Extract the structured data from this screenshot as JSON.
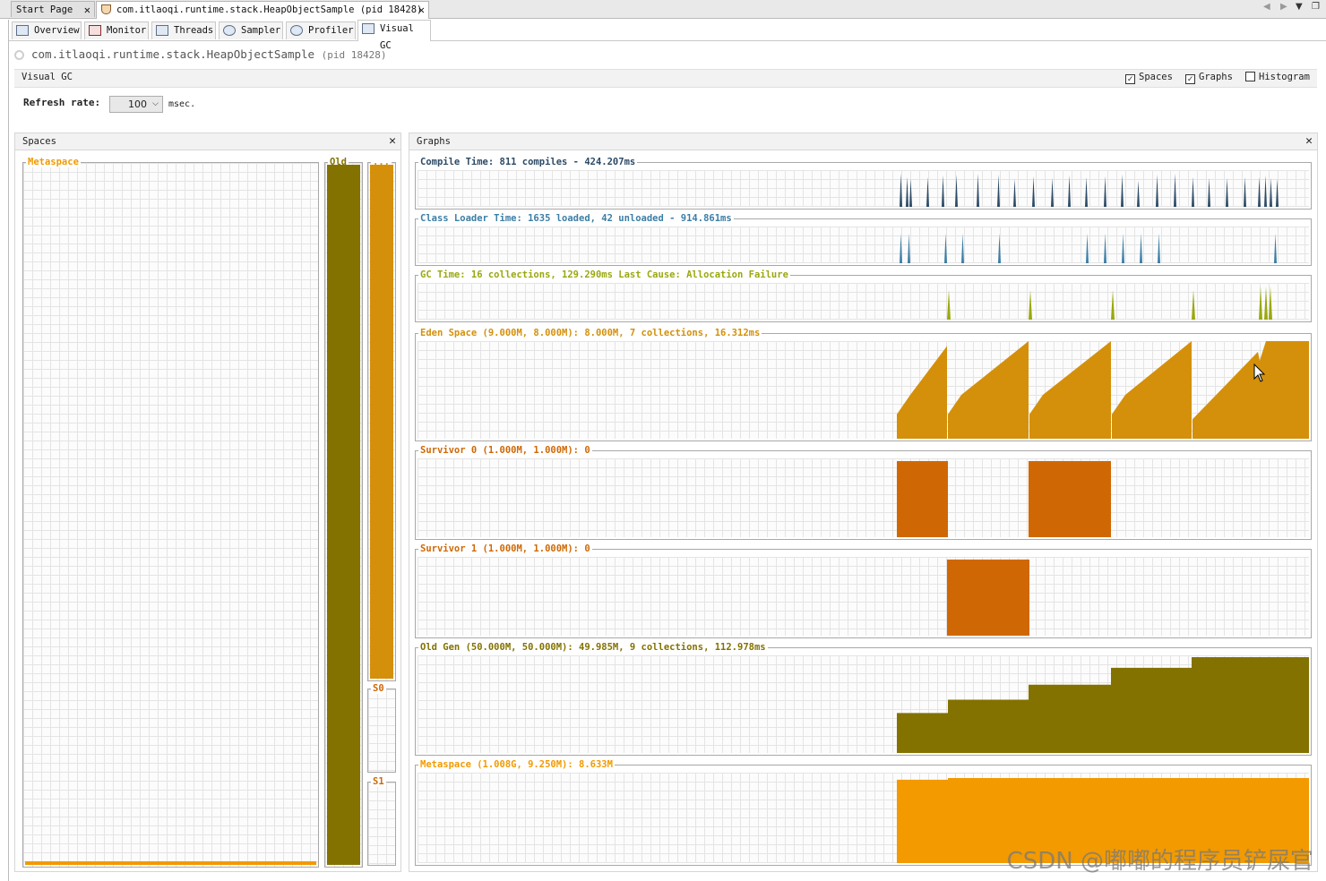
{
  "doc_tabs": [
    {
      "label": "Start Page",
      "active": false
    },
    {
      "label": "com.itlaoqi.runtime.stack.HeapObjectSample (pid 18428)",
      "active": true
    }
  ],
  "sub_tabs": [
    {
      "label": "Overview",
      "icon": "overview-icon"
    },
    {
      "label": "Monitor",
      "icon": "monitor-icon"
    },
    {
      "label": "Threads",
      "icon": "threads-icon"
    },
    {
      "label": "Sampler",
      "icon": "sampler-icon"
    },
    {
      "label": "Profiler",
      "icon": "profiler-icon"
    },
    {
      "label": "Visual GC",
      "icon": "visualgc-icon",
      "active": true
    }
  ],
  "process": {
    "name": "com.itlaoqi.runtime.stack.HeapObjectSample",
    "pid": "(pid 18428)"
  },
  "visual_gc": {
    "title": "Visual GC",
    "options": [
      {
        "label": "Spaces",
        "checked": true
      },
      {
        "label": "Graphs",
        "checked": true
      },
      {
        "label": "Histogram",
        "checked": false
      }
    ],
    "refresh_label": "Refresh rate:",
    "refresh_value": "100",
    "refresh_unit": "msec."
  },
  "spaces_panel": {
    "title": "Spaces",
    "metaspace_label": "Metaspace",
    "old_label": "Old",
    "eden_label": "...",
    "s0_label": "S0",
    "s1_label": "S1",
    "metaspace_fill": 0.01,
    "old_fill": 1.0,
    "eden_fill": 1.0,
    "s0_fill": 0.0,
    "s1_fill": 0.0
  },
  "graphs_panel": {
    "title": "Graphs",
    "graphs": [
      {
        "id": "compile",
        "label": "Compile Time: 811 compiles - 424.207ms",
        "color": "#2c4a66"
      },
      {
        "id": "classloader",
        "label": "Class Loader Time: 1635 loaded, 42 unloaded - 914.861ms",
        "color": "#3b7ea6"
      },
      {
        "id": "gc",
        "label": "GC Time: 16 collections, 129.290ms Last Cause: Allocation Failure",
        "color": "#9aa80f"
      },
      {
        "id": "eden",
        "label": "Eden Space (9.000M, 8.000M): 8.000M, 7 collections, 16.312ms",
        "color": "#d4900a"
      },
      {
        "id": "s0",
        "label": "Survivor 0 (1.000M, 1.000M): 0",
        "color": "#cf6804"
      },
      {
        "id": "s1",
        "label": "Survivor 1 (1.000M, 1.000M): 0",
        "color": "#cf6804"
      },
      {
        "id": "old",
        "label": "Old Gen (50.000M, 50.000M): 49.985M, 9 collections, 112.978ms",
        "color": "#837200"
      },
      {
        "id": "meta",
        "label": "Metaspace (1.008G, 9.250M): 8.633M",
        "color": "#f29a00"
      }
    ]
  },
  "colors": {
    "old": "#837200",
    "eden": "#d4900a",
    "survivor": "#cf6804",
    "metaspace": "#f29a00",
    "compile": "#2c4a66",
    "classloader": "#3b7ea6",
    "gc": "#9aa80f"
  },
  "watermark": "CSDN @嘟嘟的程序员铲屎官"
}
